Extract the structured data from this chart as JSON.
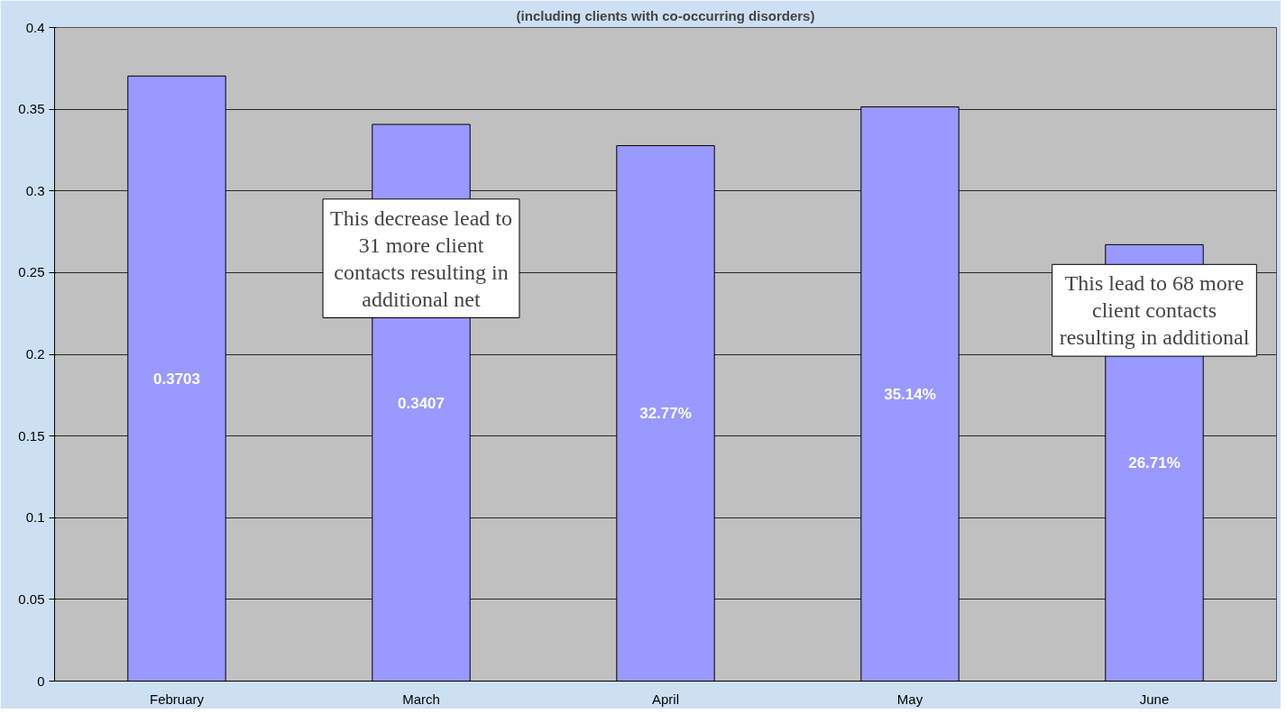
{
  "chart_data": {
    "type": "bar",
    "subtitle": "(including clients with co-occurring disorders)",
    "categories": [
      "February",
      "March",
      "April",
      "May",
      "June"
    ],
    "values": [
      0.3703,
      0.3407,
      0.3277,
      0.3514,
      0.2671
    ],
    "value_labels": [
      "0.3703",
      "0.3407",
      "32.77%",
      "35.14%",
      "26.71%"
    ],
    "color": "#9999ff",
    "ylim": [
      0,
      0.4
    ],
    "yticks": [
      0,
      0.05,
      0.1,
      0.15,
      0.2,
      0.25,
      0.3,
      0.35,
      0.4
    ],
    "grid": "y",
    "annotations": [
      "This decrease lead to\n31 more client\ncontacts resulting in\nadditional net",
      "This lead to 68 more\nclient contacts\nresulting in additional"
    ]
  }
}
